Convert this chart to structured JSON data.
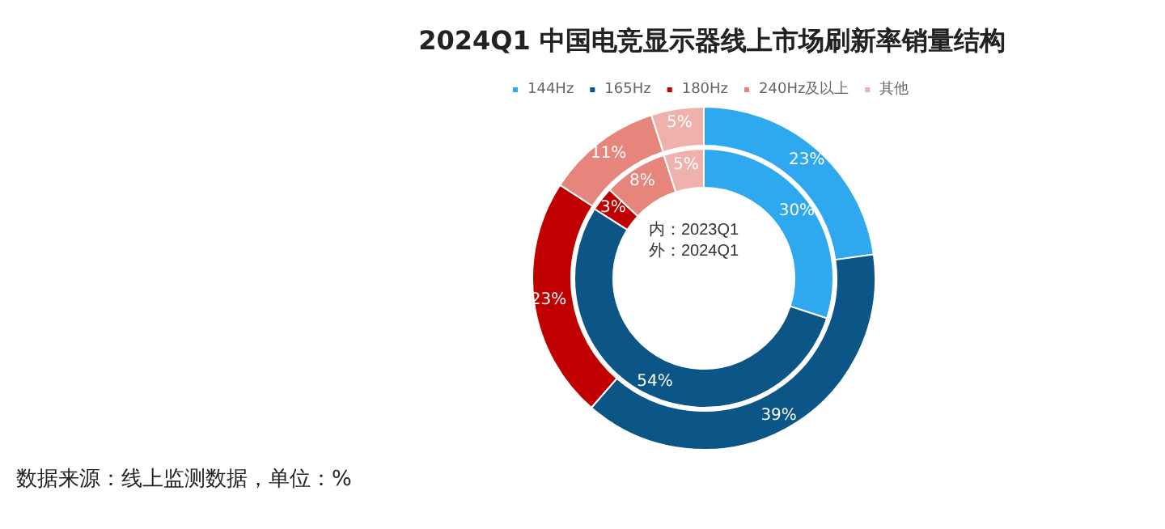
{
  "chart_data": {
    "type": "donut",
    "title": "2024Q1 中国电竞显示器线上市场刷新率销量结构",
    "categories": [
      "144Hz",
      "165Hz",
      "180Hz",
      "240Hz及以上",
      "其他"
    ],
    "colors": [
      "#2ea8ef",
      "#0b5587",
      "#c00000",
      "#e5857c",
      "#efb1ab"
    ],
    "series": [
      {
        "values": [
          30,
          54,
          3,
          8,
          5
        ],
        "value_labels": [
          "30%",
          "54%",
          "3%",
          "8%",
          "5%"
        ]
      },
      {
        "values": [
          23,
          39,
          23,
          11,
          5
        ],
        "value_labels": [
          "23%",
          "39%",
          "23%",
          "11%",
          "5%"
        ]
      }
    ],
    "legend": "top",
    "annotations": [
      "内：2023Q1\n外：2024Q1",
      "数据来源：线上监测数据，单位：%"
    ]
  }
}
